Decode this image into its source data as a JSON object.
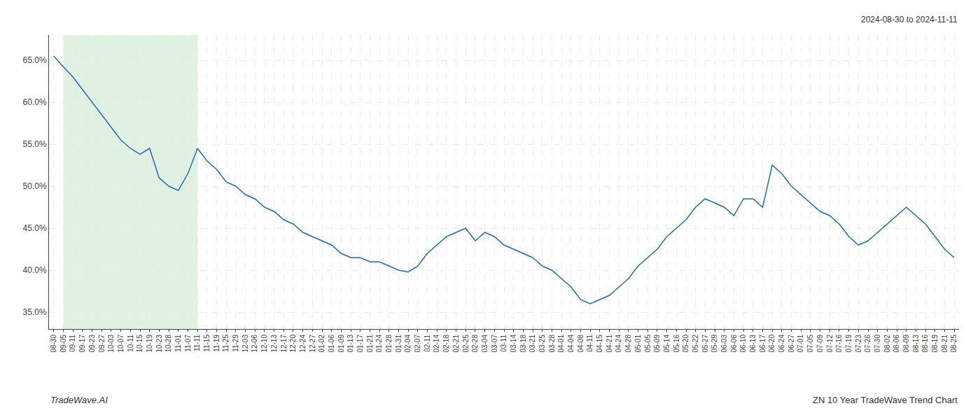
{
  "chart_data": {
    "type": "line",
    "annotations": [
      "2024-08-30 to 2024-11-11",
      "TradeWave.AI",
      "ZN 10 Year TradeWave Trend Chart"
    ],
    "categories": [
      "08-30",
      "09-05",
      "09-11",
      "09-17",
      "09-23",
      "09-27",
      "10-03",
      "10-07",
      "10-11",
      "10-15",
      "10-19",
      "10-23",
      "10-28",
      "11-01",
      "11-07",
      "11-11",
      "11-15",
      "11-19",
      "11-25",
      "11-29",
      "12-03",
      "12-06",
      "12-10",
      "12-13",
      "12-17",
      "12-20",
      "12-24",
      "12-27",
      "01-02",
      "01-06",
      "01-09",
      "01-13",
      "01-17",
      "01-21",
      "01-24",
      "01-28",
      "01-31",
      "02-04",
      "02-07",
      "02-11",
      "02-14",
      "02-18",
      "02-21",
      "02-25",
      "02-28",
      "03-04",
      "03-07",
      "03-11",
      "03-14",
      "03-18",
      "03-21",
      "03-25",
      "03-28",
      "04-01",
      "04-04",
      "04-08",
      "04-11",
      "04-15",
      "04-21",
      "04-24",
      "04-28",
      "05-01",
      "05-05",
      "05-09",
      "05-14",
      "05-16",
      "05-20",
      "05-22",
      "05-27",
      "05-29",
      "06-03",
      "06-06",
      "06-10",
      "06-13",
      "06-17",
      "06-20",
      "06-24",
      "06-27",
      "07-01",
      "07-05",
      "07-09",
      "07-12",
      "07-16",
      "07-19",
      "07-23",
      "07-26",
      "07-30",
      "08-02",
      "08-06",
      "08-09",
      "08-13",
      "08-16",
      "08-19",
      "08-21",
      "08-25"
    ],
    "values": [
      65.5,
      64.2,
      63.0,
      61.5,
      60.0,
      58.5,
      57.0,
      55.5,
      54.5,
      53.8,
      54.5,
      51.0,
      50.0,
      49.5,
      51.5,
      54.5,
      53.0,
      52.0,
      50.5,
      50.0,
      49.0,
      48.5,
      47.5,
      47.0,
      46.0,
      45.5,
      44.5,
      44.0,
      43.5,
      43.0,
      42.0,
      41.5,
      41.5,
      41.0,
      41.0,
      40.5,
      40.0,
      39.8,
      40.5,
      42.0,
      43.0,
      44.0,
      44.5,
      45.0,
      43.5,
      44.5,
      44.0,
      43.0,
      42.5,
      42.0,
      41.5,
      40.5,
      40.0,
      39.0,
      38.0,
      36.5,
      36.0,
      36.5,
      37.0,
      38.0,
      39.0,
      40.5,
      41.5,
      42.5,
      44.0,
      45.0,
      46.0,
      47.5,
      48.5,
      48.0,
      47.5,
      46.5,
      48.5,
      48.5,
      47.5,
      52.5,
      51.5,
      50.0,
      49.0,
      48.0,
      47.0,
      46.5,
      45.5,
      44.0,
      43.0,
      43.5,
      44.5,
      45.5,
      46.5,
      47.5,
      46.5,
      45.5,
      44.0,
      42.5,
      41.5
    ],
    "color": "#1f6eb5",
    "highlight": {
      "start": "09-05",
      "end": "11-11",
      "color": "#c8e6c8"
    },
    "ylim": [
      33.0,
      68.0
    ],
    "yticks": [
      {
        "value": 35.0,
        "label": "35.0%"
      },
      {
        "value": 40.0,
        "label": "40.0%"
      },
      {
        "value": 45.0,
        "label": "45.0%"
      },
      {
        "value": 50.0,
        "label": "50.0%"
      },
      {
        "value": 55.0,
        "label": "55.0%"
      },
      {
        "value": 60.0,
        "label": "60.0%"
      },
      {
        "value": 65.0,
        "label": "65.0%"
      }
    ],
    "grid": true
  }
}
